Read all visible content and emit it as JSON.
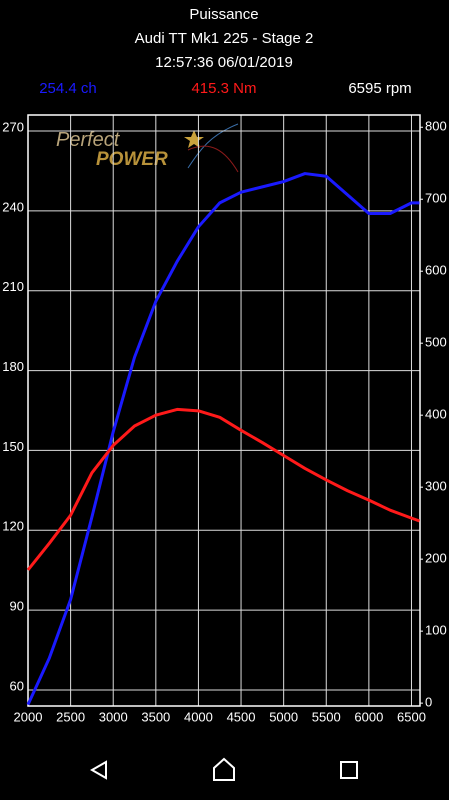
{
  "header": {
    "title": "Puissance",
    "subtitle": "Audi TT Mk1 225  - Stage 2",
    "timestamp": "12:57:36 06/01/2019",
    "power_readout": "254.4 ch",
    "torque_readout": "415.3 Nm",
    "rpm_readout": "6595 rpm"
  },
  "logo": {
    "line1": "Perfect",
    "line2": "POWER"
  },
  "chart_data": {
    "type": "line",
    "x": [
      2000,
      2250,
      2500,
      2750,
      3000,
      3250,
      3500,
      3750,
      4000,
      4250,
      4500,
      4750,
      5000,
      5250,
      5500,
      5750,
      6000,
      6250,
      6500,
      6595
    ],
    "series": [
      {
        "name": "ch",
        "color": "#1a1aff",
        "values": [
          54.5,
          72,
          94,
          125,
          157,
          185,
          206,
          221,
          234,
          243,
          247,
          249,
          251,
          254,
          253,
          246,
          239,
          239,
          243,
          243
        ]
      },
      {
        "name": "Nm",
        "color": "#ff1a1a",
        "axis": "y2",
        "values": [
          185,
          222,
          261,
          320,
          358,
          385,
          400,
          408,
          406,
          397,
          379,
          362,
          344,
          326,
          310,
          295,
          282,
          268,
          257,
          253
        ]
      }
    ],
    "xlim": [
      2000,
      6600
    ],
    "xticks": [
      2000,
      2500,
      3000,
      3500,
      4000,
      4500,
      5000,
      5500,
      6000,
      6500
    ],
    "ylim": [
      54,
      276
    ],
    "yticks": [
      60,
      90,
      120,
      150,
      180,
      210,
      240,
      270
    ],
    "y2lim": [
      -4,
      817
    ],
    "y2ticks": [
      0,
      100,
      200,
      300,
      400,
      500,
      600,
      700,
      800
    ],
    "grid": true
  }
}
